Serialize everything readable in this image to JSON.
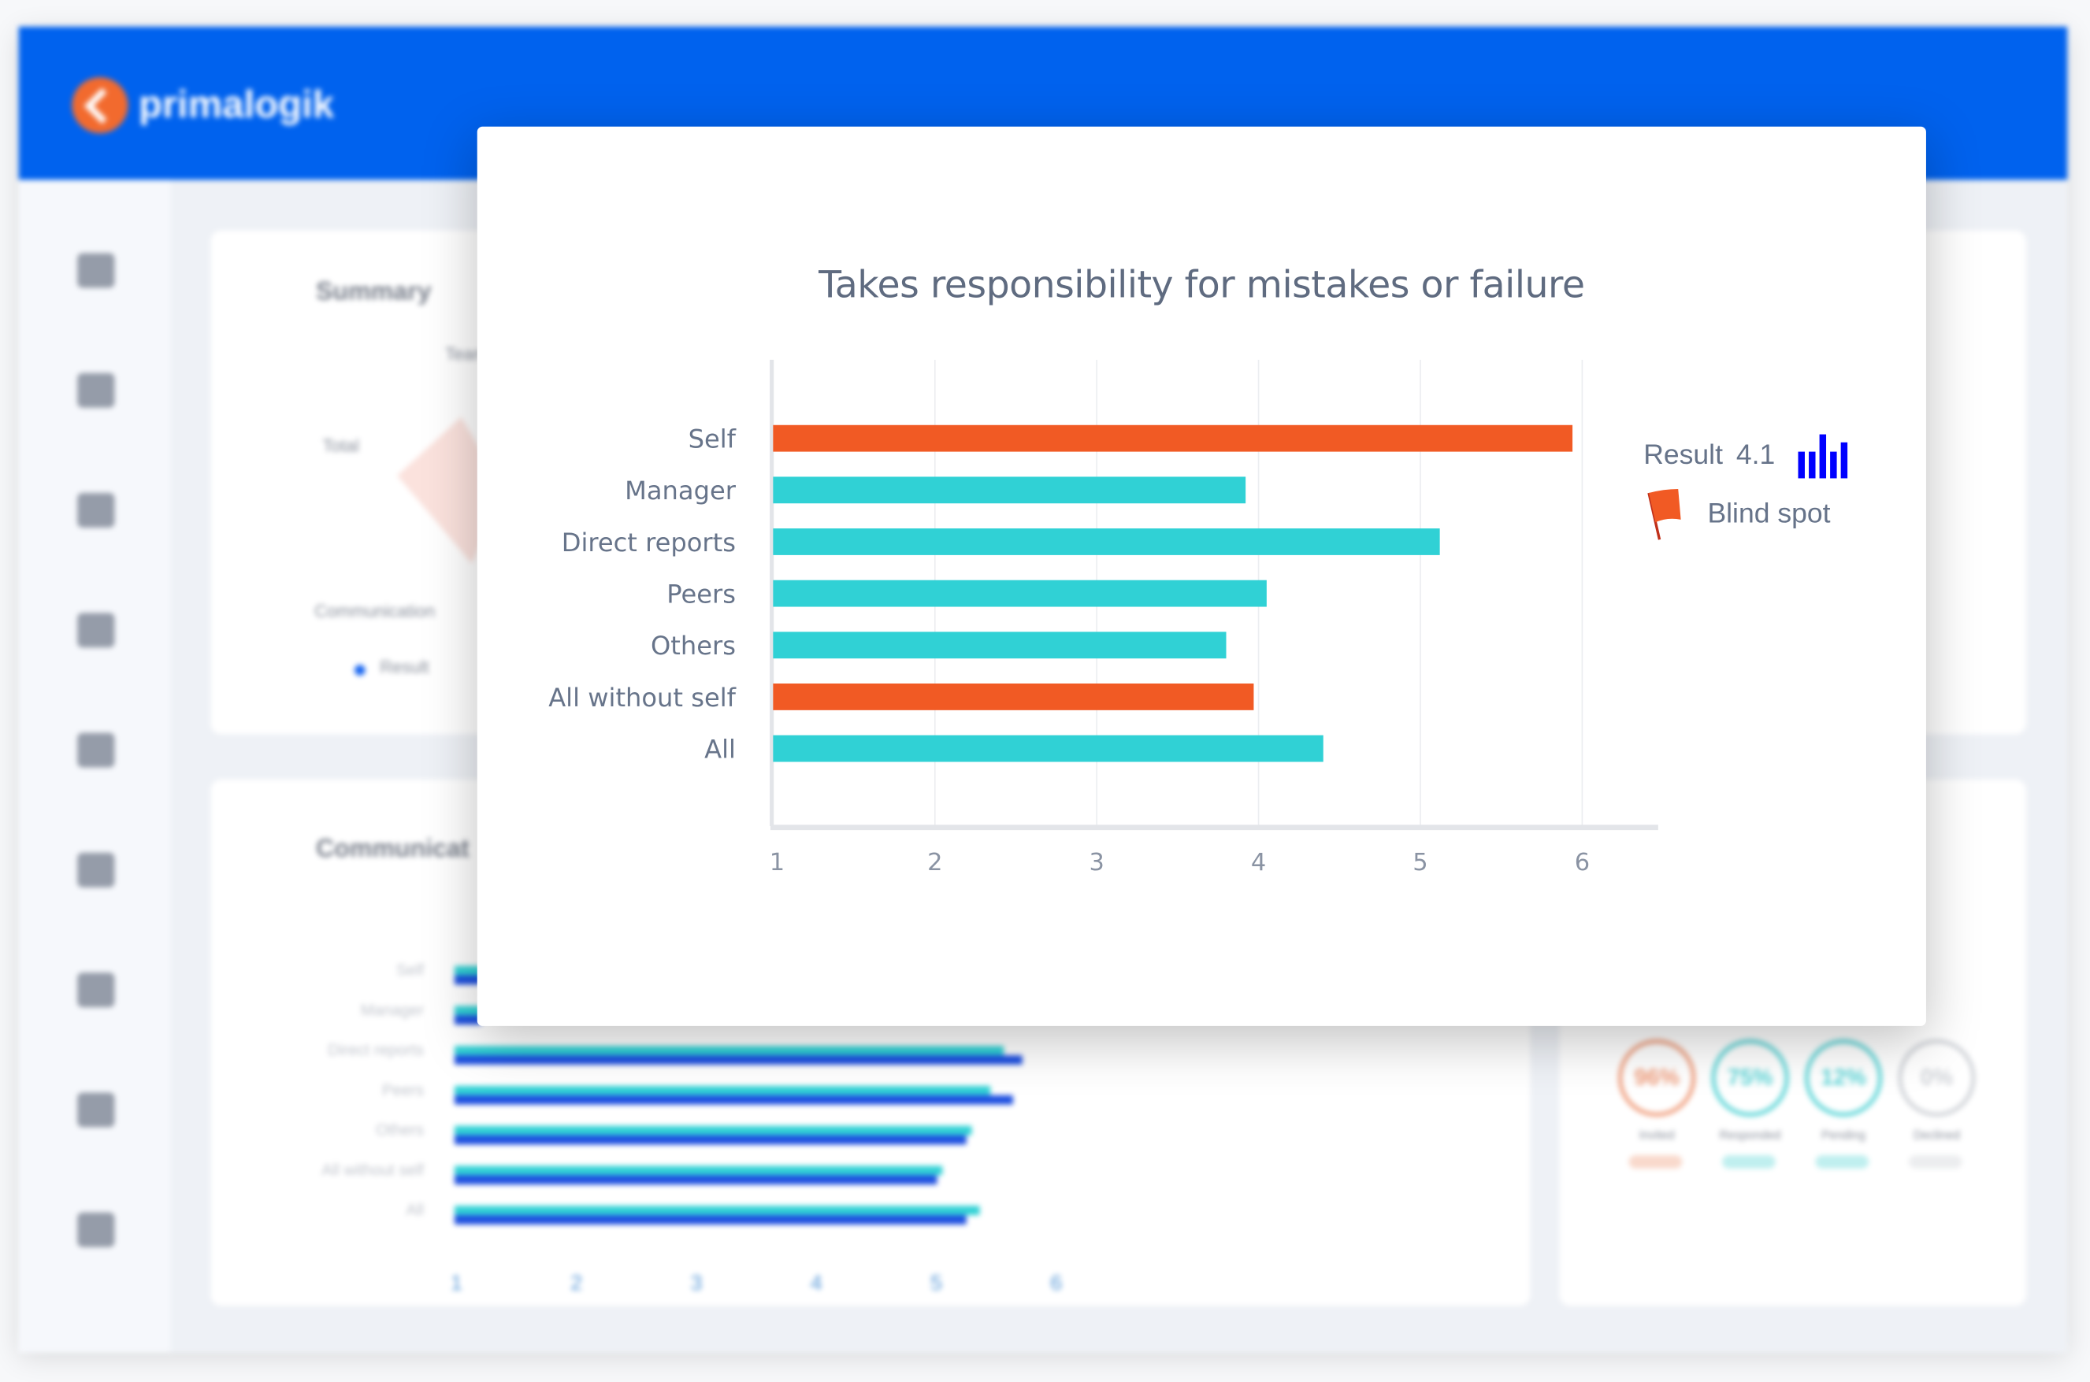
{
  "app": {
    "brand": "primalogik"
  },
  "sidebar": {
    "icons": [
      "home-icon",
      "list-icon",
      "chart-icon",
      "grid-icon",
      "target-icon",
      "refresh-icon",
      "document-icon",
      "feedback-icon",
      "gear-icon"
    ]
  },
  "background": {
    "summary": {
      "title": "Summary",
      "labels": [
        "Team",
        "Total",
        "Communication"
      ],
      "legend": "Result"
    },
    "communication": {
      "title": "Communicat",
      "categories": [
        "Self",
        "Manager",
        "Direct reports",
        "Peers",
        "Others",
        "All without self",
        "All"
      ],
      "ticks": [
        "1",
        "2",
        "3",
        "4",
        "5",
        "6"
      ]
    },
    "status": [
      {
        "value": "96%",
        "label": "Invited",
        "color": "#f0a080"
      },
      {
        "value": "75%",
        "label": "Responded",
        "color": "#5fd6d8"
      },
      {
        "value": "12%",
        "label": "Pending",
        "color": "#5fd6d8"
      },
      {
        "value": "0%",
        "label": "Declined",
        "color": "#d0d3d8"
      }
    ]
  },
  "modal": {
    "legend": {
      "result_label": "Result",
      "result_value": "4.1",
      "blind_spot": "Blind spot",
      "icon_color": "#0000ff",
      "flag_color": "#f15a24"
    }
  },
  "chart_data": {
    "type": "bar",
    "orientation": "horizontal",
    "title": "Takes responsibility for mistakes or failure",
    "categories": [
      "Self",
      "Manager",
      "Direct reports",
      "Peers",
      "Others",
      "All without self",
      "All"
    ],
    "values": [
      5.94,
      3.92,
      5.12,
      4.05,
      3.8,
      3.97,
      4.4
    ],
    "colors": [
      "#f15a24",
      "#30d1d5",
      "#30d1d5",
      "#30d1d5",
      "#30d1d5",
      "#f15a24",
      "#30d1d5"
    ],
    "xticks": [
      "1",
      "2",
      "3",
      "4",
      "5",
      "6"
    ],
    "xlim": [
      1,
      6.5
    ],
    "grid": true
  }
}
